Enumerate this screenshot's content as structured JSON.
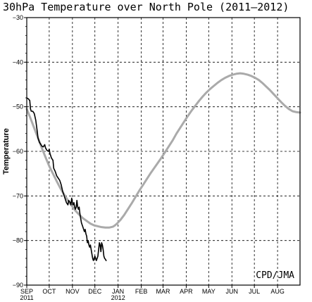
{
  "chart_data": {
    "type": "line",
    "title": "30hPa Temperature over North Pole (2011–2012)",
    "ylabel": "Temperature",
    "credit": "CPD/JMA",
    "ylim": [
      -90,
      -30
    ],
    "xlim": [
      0,
      365
    ],
    "yticks": [
      -30,
      -40,
      -50,
      -60,
      -70,
      -80,
      -90
    ],
    "ytick_labels": [
      "−30",
      "−40",
      "−50",
      "−60",
      "−70",
      "−80",
      "−90"
    ],
    "months": [
      {
        "label": "SEP",
        "day": 0,
        "year": "2011"
      },
      {
        "label": "OCT",
        "day": 30,
        "year": ""
      },
      {
        "label": "NOV",
        "day": 61,
        "year": ""
      },
      {
        "label": "DEC",
        "day": 91,
        "year": ""
      },
      {
        "label": "JAN",
        "day": 122,
        "year": "2012"
      },
      {
        "label": "FEB",
        "day": 153,
        "year": ""
      },
      {
        "label": "MAR",
        "day": 182,
        "year": ""
      },
      {
        "label": "APR",
        "day": 213,
        "year": ""
      },
      {
        "label": "MAY",
        "day": 243,
        "year": ""
      },
      {
        "label": "JUN",
        "day": 274,
        "year": ""
      },
      {
        "label": "JUL",
        "day": 304,
        "year": ""
      },
      {
        "label": "AUG",
        "day": 335,
        "year": ""
      }
    ],
    "grid": true,
    "series": [
      {
        "color": "#aaaaaa",
        "x": [
          0,
          5,
          10,
          15,
          20,
          25,
          30,
          35,
          40,
          45,
          50,
          55,
          60,
          65,
          70,
          75,
          80,
          85,
          90,
          95,
          100,
          105,
          110,
          115,
          117,
          120,
          125,
          130,
          135,
          140,
          145,
          150,
          155,
          160,
          165,
          170,
          175,
          180,
          185,
          190,
          195,
          200,
          205,
          210,
          215,
          220,
          225,
          230,
          235,
          240,
          245,
          250,
          255,
          260,
          265,
          270,
          275,
          280,
          285,
          290,
          295,
          300,
          305,
          310,
          315,
          320,
          325,
          330,
          335,
          340,
          345,
          350,
          355,
          360,
          365
        ],
        "y": [
          -50.5,
          -52.6,
          -54.8,
          -57.0,
          -59.2,
          -61.3,
          -63.3,
          -65.0,
          -66.7,
          -68.3,
          -69.7,
          -71.0,
          -72.2,
          -73.3,
          -74.2,
          -75.0,
          -75.6,
          -76.2,
          -76.6,
          -76.8,
          -77.0,
          -77.1,
          -77.1,
          -76.9,
          -76.7,
          -76.3,
          -75.4,
          -74.3,
          -73.0,
          -71.7,
          -70.3,
          -68.9,
          -67.6,
          -66.3,
          -65.0,
          -63.8,
          -62.6,
          -61.4,
          -60.1,
          -58.8,
          -57.5,
          -56.0,
          -54.7,
          -53.4,
          -52.1,
          -50.9,
          -49.8,
          -48.7,
          -47.7,
          -46.8,
          -46.0,
          -45.3,
          -44.6,
          -44.0,
          -43.5,
          -43.1,
          -42.8,
          -42.6,
          -42.5,
          -42.6,
          -42.8,
          -43.1,
          -43.5,
          -44.0,
          -44.7,
          -45.5,
          -46.3,
          -47.2,
          -48.1,
          -49.0,
          -49.8,
          -50.5,
          -51.0,
          -51.2,
          -51.3
        ]
      },
      {
        "color": "#000000",
        "x": [
          0,
          2,
          4,
          5,
          6,
          8,
          10,
          12,
          14,
          15,
          17,
          19,
          20,
          22,
          24,
          25,
          27,
          29,
          30,
          31,
          33,
          35,
          36,
          38,
          40,
          42,
          44,
          46,
          48,
          50,
          52,
          53,
          55,
          56,
          58,
          59,
          60,
          61,
          62,
          63,
          64,
          65,
          66,
          67,
          68,
          69,
          70,
          71,
          72,
          73,
          74,
          75,
          76,
          77,
          78,
          79,
          80,
          81,
          82,
          83,
          84,
          85,
          86,
          87,
          88,
          89,
          90,
          91,
          92,
          93,
          94,
          95,
          96,
          97,
          98,
          99,
          100,
          101,
          102,
          103,
          104,
          105,
          106
        ],
        "y": [
          -48.0,
          -48.2,
          -48.6,
          -50.5,
          -51.0,
          -51.0,
          -51.5,
          -53.0,
          -55.5,
          -57.0,
          -58.0,
          -58.5,
          -58.8,
          -59.0,
          -58.5,
          -59.2,
          -59.8,
          -60.0,
          -59.5,
          -60.5,
          -61.5,
          -62.0,
          -63.8,
          -64.5,
          -65.5,
          -66.0,
          -66.5,
          -67.5,
          -69.0,
          -70.0,
          -71.0,
          -71.5,
          -72.0,
          -71.0,
          -71.5,
          -72.0,
          -70.5,
          -71.5,
          -72.0,
          -71.5,
          -72.5,
          -73.0,
          -72.5,
          -71.0,
          -72.5,
          -73.0,
          -72.5,
          -74.0,
          -75.0,
          -76.0,
          -76.5,
          -77.0,
          -77.5,
          -78.0,
          -77.5,
          -78.5,
          -79.0,
          -80.5,
          -80.0,
          -81.0,
          -81.5,
          -81.0,
          -82.0,
          -83.0,
          -84.0,
          -84.5,
          -84.0,
          -83.5,
          -84.0,
          -84.5,
          -84.0,
          -83.5,
          -82.0,
          -80.5,
          -81.0,
          -82.5,
          -80.5,
          -81.0,
          -82.0,
          -83.5,
          -84.0,
          -84.2,
          -84.5
        ]
      }
    ]
  }
}
